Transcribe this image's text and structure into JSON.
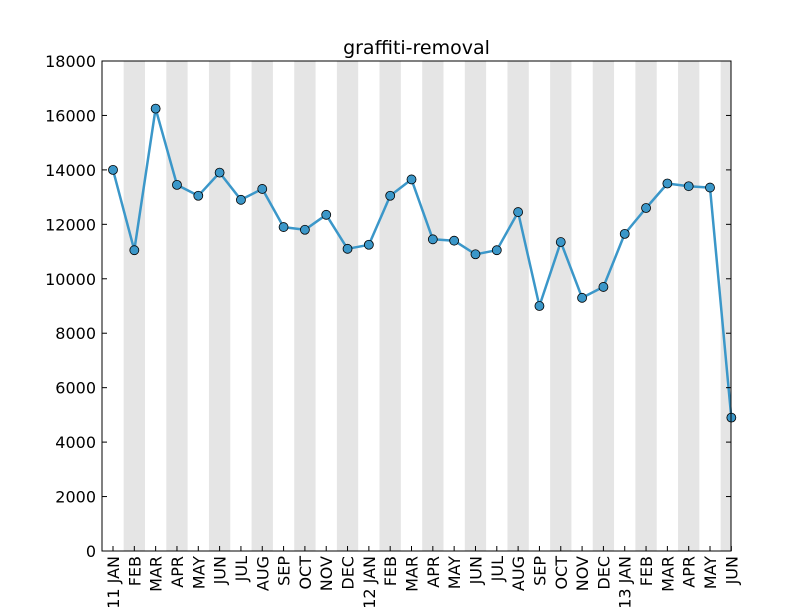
{
  "chart_data": {
    "type": "line",
    "title": "graffiti-removal",
    "xlabel": "",
    "ylabel": "",
    "ylim": [
      0,
      18000
    ],
    "yticks": [
      0,
      2000,
      4000,
      6000,
      8000,
      10000,
      12000,
      14000,
      16000,
      18000
    ],
    "ytick_labels": [
      "0",
      "2000",
      "4000",
      "6000",
      "8000",
      "10000",
      "12000",
      "14000",
      "16000",
      "18000"
    ],
    "categories": [
      "11 JAN",
      "FEB",
      "MAR",
      "APR",
      "MAY",
      "JUN",
      "JUL",
      "AUG",
      "SEP",
      "OCT",
      "NOV",
      "DEC",
      "12 JAN",
      "FEB",
      "MAR",
      "APR",
      "MAY",
      "JUN",
      "JUL",
      "AUG",
      "SEP",
      "OCT",
      "NOV",
      "DEC",
      "13 JAN",
      "FEB",
      "MAR",
      "APR",
      "MAY",
      "JUN"
    ],
    "series": [
      {
        "values": [
          14000,
          11050,
          16250,
          13450,
          13050,
          13900,
          12900,
          13300,
          11900,
          11800,
          12350,
          11100,
          11250,
          13050,
          13650,
          11450,
          11400,
          10900,
          11050,
          12450,
          9000,
          11350,
          9300,
          9700,
          11650,
          12600,
          13500,
          13400,
          13350,
          4900
        ]
      }
    ],
    "grid": false,
    "legend": "none",
    "band_color": "#e5e5e5",
    "line_color": "#3b97c9",
    "marker_color": "#3b97c9"
  }
}
